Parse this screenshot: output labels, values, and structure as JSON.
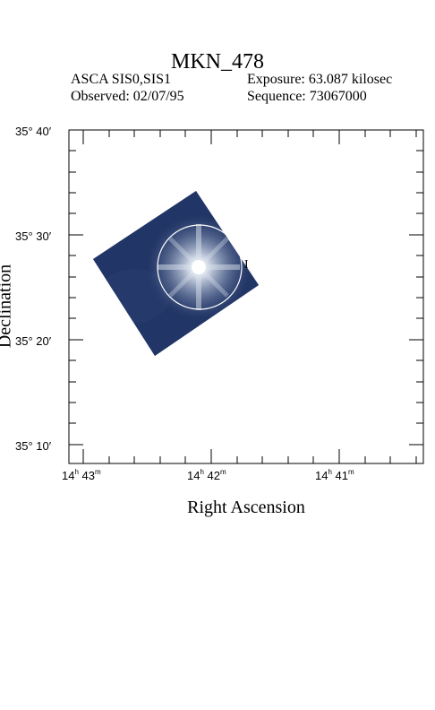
{
  "header": {
    "title": "MKN_478",
    "instrument": "ASCA SIS0,SIS1",
    "exposure": "Exposure: 63.087 kilosec",
    "observed": "Observed: 02/07/95",
    "sequence": "Sequence: 73067000"
  },
  "axes": {
    "xlabel": "Right Ascension",
    "ylabel": "Declination",
    "x_ticks": [
      {
        "h": "14",
        "m": "43"
      },
      {
        "h": "14",
        "m": "42"
      },
      {
        "h": "14",
        "m": "41"
      }
    ],
    "y_ticks": [
      "35° 40′",
      "35° 30′",
      "35° 20′",
      "35° 10′"
    ]
  },
  "source_marker": "I"
}
